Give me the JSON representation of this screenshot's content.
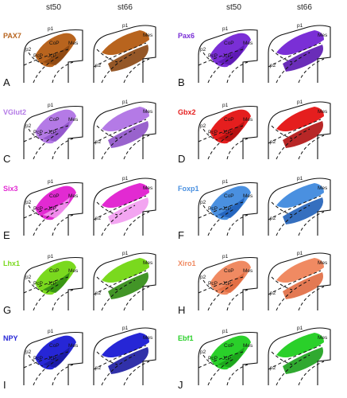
{
  "columns": [
    "st50",
    "st66",
    "st50",
    "st66"
  ],
  "panels": [
    {
      "letter": "A",
      "gene": "PAX7",
      "color": "#b8641e",
      "dark": "#8a4510"
    },
    {
      "letter": "B",
      "gene": "Pax6",
      "color": "#7a2fd6",
      "dark": "#5a16b0"
    },
    {
      "letter": "C",
      "gene": "VGlut2",
      "color": "#b47ae6",
      "dark": "#8e52c8"
    },
    {
      "letter": "D",
      "gene": "Gbx2",
      "color": "#e51e1e",
      "dark": "#b00f0f"
    },
    {
      "letter": "E",
      "gene": "Six3",
      "color": "#e22ad2",
      "dark": "#f29bf0"
    },
    {
      "letter": "F",
      "gene": "Foxp1",
      "color": "#4a90e0",
      "dark": "#1f5fb8"
    },
    {
      "letter": "G",
      "gene": "Lhx1",
      "color": "#7ad91e",
      "dark": "#2e8a10"
    },
    {
      "letter": "H",
      "gene": "Xiro1",
      "color": "#f08a62",
      "dark": "#e06a40"
    },
    {
      "letter": "I",
      "gene": "NPY",
      "color": "#2626d6",
      "dark": "#1a1aa0"
    },
    {
      "letter": "J",
      "gene": "Ebf1",
      "color": "#2ad02a",
      "dark": "#1aa01a"
    }
  ],
  "labels": {
    "p1": "p1",
    "p2": "p2",
    "mes": "Mes",
    "cop": "CoP",
    "jcp": "JcP",
    "pcp": "PcP"
  }
}
